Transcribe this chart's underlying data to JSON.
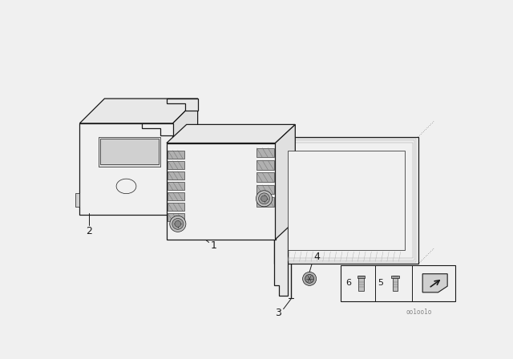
{
  "bg_color": "#f0f0f0",
  "dark": "#1a1a1a",
  "mid": "#666666",
  "light": "#cccccc",
  "white": "#f0f0f0",
  "watermark": "oo1oo1o",
  "lw_main": 0.9,
  "lw_thin": 0.5,
  "lw_dot": 0.5
}
